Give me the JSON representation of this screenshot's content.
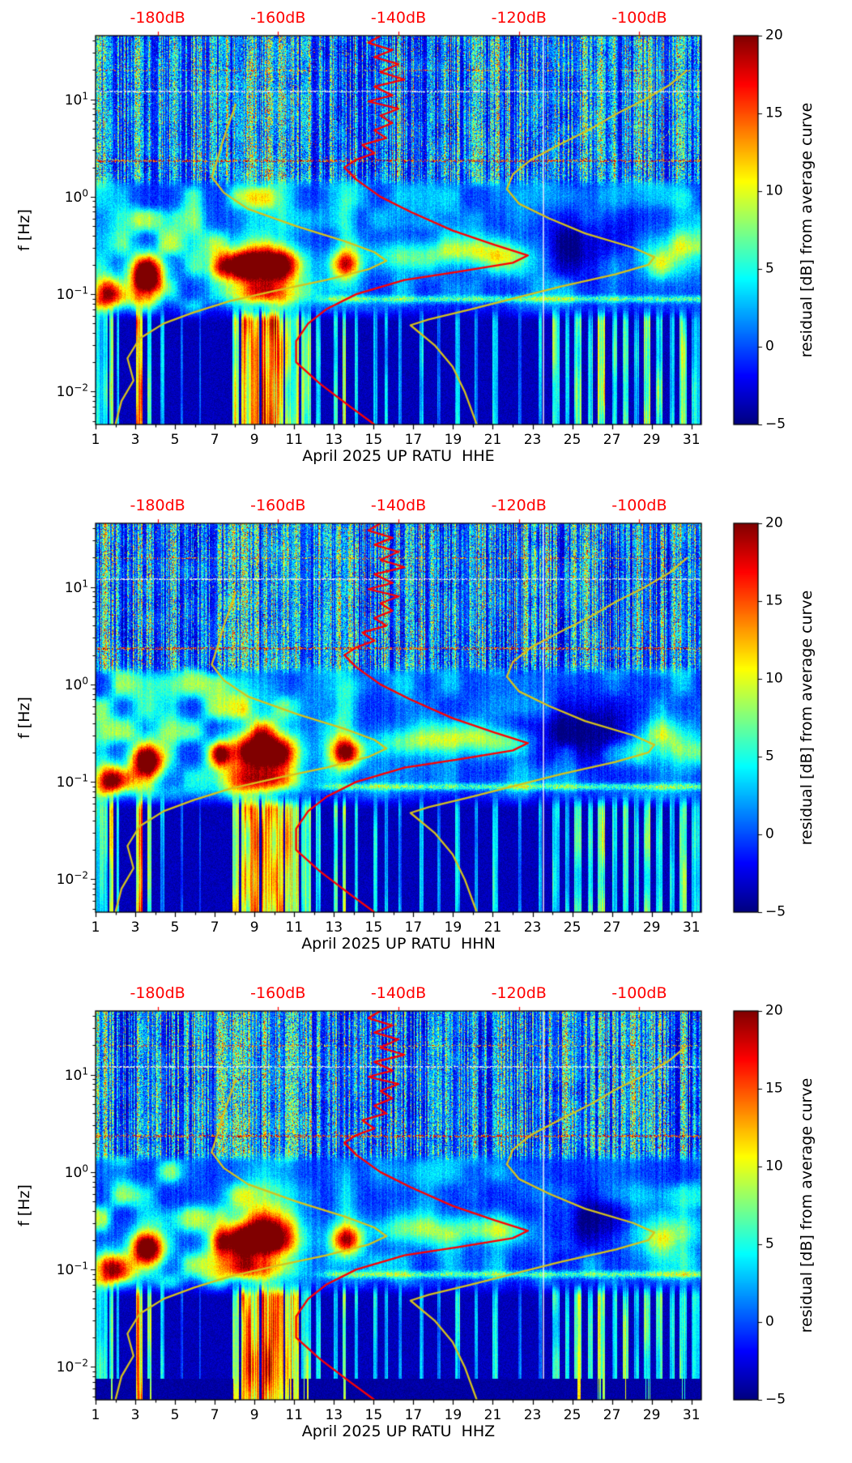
{
  "figure": {
    "background": "#ffffff"
  },
  "chart_data": {
    "type": "heatmap",
    "subtype": "seismic-noise-spectrogram-residual",
    "panels": [
      {
        "channel": "HHE",
        "title": "April 2025 UP RATU  HHE"
      },
      {
        "channel": "HHN",
        "title": "April 2025 UP RATU  HHN"
      },
      {
        "channel": "HHZ",
        "title": "April 2025 UP RATU  HHZ"
      }
    ],
    "x_axis": {
      "month": "April 2025",
      "station": "UP RATU",
      "ticks": [
        1,
        3,
        5,
        7,
        9,
        11,
        13,
        15,
        17,
        19,
        21,
        23,
        25,
        27,
        29,
        31
      ],
      "range_days": [
        1,
        31.5
      ]
    },
    "y_axis": {
      "label": "f [Hz]",
      "scale": "log",
      "range_hz": [
        0.0046,
        45
      ],
      "tick_exponents": [
        1,
        0,
        -1,
        -2
      ]
    },
    "top_axis": {
      "color": "#ff0000",
      "tick_labels": [
        "-180dB",
        "-160dB",
        "-140dB",
        "-120dB",
        "-100dB"
      ],
      "tick_values_db": [
        -180,
        -160,
        -140,
        -120,
        -100
      ],
      "range_db": [
        -190.3,
        -89.7
      ]
    },
    "colorbar": {
      "label": "residual [dB] from average curve",
      "ticks": [
        20,
        15,
        10,
        5,
        0,
        -5
      ],
      "range": [
        -5,
        20
      ],
      "colormap": "jet"
    },
    "curves": {
      "median_psd_db": {
        "color": "#ff0000",
        "points_f_db": [
          [
            45,
            -143
          ],
          [
            38,
            -145
          ],
          [
            32,
            -141
          ],
          [
            27,
            -144
          ],
          [
            23,
            -140
          ],
          [
            19,
            -143
          ],
          [
            16,
            -139
          ],
          [
            13.5,
            -144
          ],
          [
            11,
            -141
          ],
          [
            9.5,
            -145
          ],
          [
            8,
            -140
          ],
          [
            6.8,
            -143
          ],
          [
            5.7,
            -141
          ],
          [
            4.8,
            -144
          ],
          [
            4.0,
            -142
          ],
          [
            3.4,
            -146
          ],
          [
            2.8,
            -144
          ],
          [
            2.4,
            -147
          ],
          [
            2.0,
            -149
          ],
          [
            1.5,
            -147
          ],
          [
            1.0,
            -143
          ],
          [
            0.7,
            -138
          ],
          [
            0.45,
            -131
          ],
          [
            0.32,
            -124
          ],
          [
            0.25,
            -118.5
          ],
          [
            0.21,
            -121
          ],
          [
            0.17,
            -130
          ],
          [
            0.14,
            -139
          ],
          [
            0.1,
            -147
          ],
          [
            0.07,
            -152
          ],
          [
            0.05,
            -155
          ],
          [
            0.033,
            -157
          ],
          [
            0.02,
            -157
          ],
          [
            0.012,
            -153
          ],
          [
            0.007,
            -148
          ],
          [
            0.0046,
            -144
          ]
        ]
      },
      "low_envelope_db": {
        "color": "#d6c21c",
        "points_f_db": [
          [
            9,
            -167
          ],
          [
            6,
            -168
          ],
          [
            4,
            -169
          ],
          [
            2.5,
            -170
          ],
          [
            1.6,
            -171
          ],
          [
            1.1,
            -169
          ],
          [
            0.75,
            -165
          ],
          [
            0.5,
            -157
          ],
          [
            0.35,
            -149
          ],
          [
            0.27,
            -144
          ],
          [
            0.22,
            -142
          ],
          [
            0.18,
            -145
          ],
          [
            0.14,
            -152
          ],
          [
            0.11,
            -160
          ],
          [
            0.085,
            -168
          ],
          [
            0.065,
            -174
          ],
          [
            0.05,
            -179
          ],
          [
            0.035,
            -183
          ],
          [
            0.022,
            -185
          ],
          [
            0.013,
            -184
          ],
          [
            0.008,
            -186
          ],
          [
            0.0046,
            -187
          ]
        ]
      },
      "high_envelope_db": {
        "color": "#d6c21c",
        "points_f_db": [
          [
            20,
            -92
          ],
          [
            14,
            -95
          ],
          [
            10,
            -99
          ],
          [
            7,
            -104
          ],
          [
            5,
            -108
          ],
          [
            3.5,
            -113
          ],
          [
            2.4,
            -118
          ],
          [
            1.7,
            -121
          ],
          [
            1.2,
            -122
          ],
          [
            0.85,
            -120
          ],
          [
            0.6,
            -115
          ],
          [
            0.42,
            -109
          ],
          [
            0.3,
            -101
          ],
          [
            0.24,
            -97.5
          ],
          [
            0.2,
            -98.5
          ],
          [
            0.16,
            -104
          ],
          [
            0.12,
            -113
          ],
          [
            0.09,
            -121
          ],
          [
            0.07,
            -128
          ],
          [
            0.055,
            -135
          ],
          [
            0.048,
            -138
          ],
          [
            0.03,
            -134
          ],
          [
            0.018,
            -131
          ],
          [
            0.01,
            -129
          ],
          [
            0.0046,
            -127
          ]
        ]
      }
    },
    "features": {
      "microseism_hotspots_day_logf_sdday_sdlogf_amp": [
        [
          1.6,
          -0.95,
          0.5,
          0.1,
          14
        ],
        [
          3.6,
          -0.78,
          0.6,
          0.13,
          26
        ],
        [
          9.4,
          -0.7,
          1.2,
          0.14,
          27
        ],
        [
          13.6,
          -0.7,
          0.55,
          0.11,
          17
        ],
        [
          7.3,
          -0.72,
          0.35,
          0.09,
          10
        ],
        [
          16.5,
          -0.6,
          1.4,
          0.1,
          6
        ],
        [
          19.5,
          -0.58,
          1.4,
          0.1,
          6
        ],
        [
          21.6,
          -0.6,
          1.0,
          0.1,
          7
        ],
        [
          29.8,
          -0.6,
          1.4,
          0.16,
          8
        ],
        [
          25.5,
          -0.5,
          2.2,
          0.22,
          -5
        ],
        [
          2.0,
          -1.05,
          0.8,
          0.08,
          8
        ],
        [
          9.4,
          -1.0,
          1.3,
          0.08,
          10
        ],
        [
          13.6,
          -0.3,
          0.35,
          0.3,
          5
        ],
        [
          9.3,
          -0.25,
          0.8,
          0.3,
          4
        ]
      ],
      "low_freq_noise_stripes_day0_day1_amp": [
        [
          1.0,
          1.6,
          10
        ],
        [
          1.7,
          1.9,
          14
        ],
        [
          2.05,
          2.2,
          8
        ],
        [
          3.05,
          3.35,
          21
        ],
        [
          3.6,
          3.8,
          12
        ],
        [
          4.25,
          4.45,
          8
        ],
        [
          5.3,
          5.4,
          5
        ],
        [
          6.2,
          6.3,
          5
        ],
        [
          7.9,
          8.2,
          15
        ],
        [
          8.35,
          9.25,
          20
        ],
        [
          9.35,
          10.45,
          22
        ],
        [
          10.55,
          11.25,
          17
        ],
        [
          11.35,
          11.85,
          13
        ],
        [
          12.1,
          12.35,
          9
        ],
        [
          13.0,
          13.2,
          11
        ],
        [
          13.45,
          13.6,
          15
        ],
        [
          14.05,
          14.2,
          10
        ],
        [
          15.0,
          15.2,
          9
        ],
        [
          15.55,
          15.7,
          8
        ],
        [
          16.25,
          16.4,
          7
        ],
        [
          17.3,
          17.5,
          8
        ],
        [
          18.2,
          18.35,
          6
        ],
        [
          19.1,
          19.35,
          10
        ],
        [
          20.1,
          20.25,
          7
        ],
        [
          21.0,
          21.25,
          9
        ],
        [
          22.3,
          22.45,
          6
        ],
        [
          23.3,
          23.45,
          7
        ],
        [
          24.0,
          24.35,
          12
        ],
        [
          24.65,
          24.85,
          10
        ],
        [
          25.1,
          25.45,
          13
        ],
        [
          25.8,
          26.05,
          10
        ],
        [
          26.3,
          26.65,
          14
        ],
        [
          27.0,
          27.25,
          10
        ],
        [
          27.55,
          27.85,
          12
        ],
        [
          28.1,
          28.35,
          9
        ],
        [
          28.6,
          28.95,
          13
        ],
        [
          29.2,
          29.55,
          11
        ],
        [
          29.9,
          30.15,
          10
        ],
        [
          30.4,
          30.75,
          13
        ],
        [
          31.0,
          31.4,
          10
        ]
      ],
      "notes": "broadband anthropogenic noise columns above 1.5 Hz; secondary microseism band 0.1-0.3 Hz strongest around Apr 3-4 and Apr 8-11; quiet dark period Apr 23-28; long-period bursts below 0.07 Hz strongest Apr 8-12 and Apr 24-31"
    }
  }
}
